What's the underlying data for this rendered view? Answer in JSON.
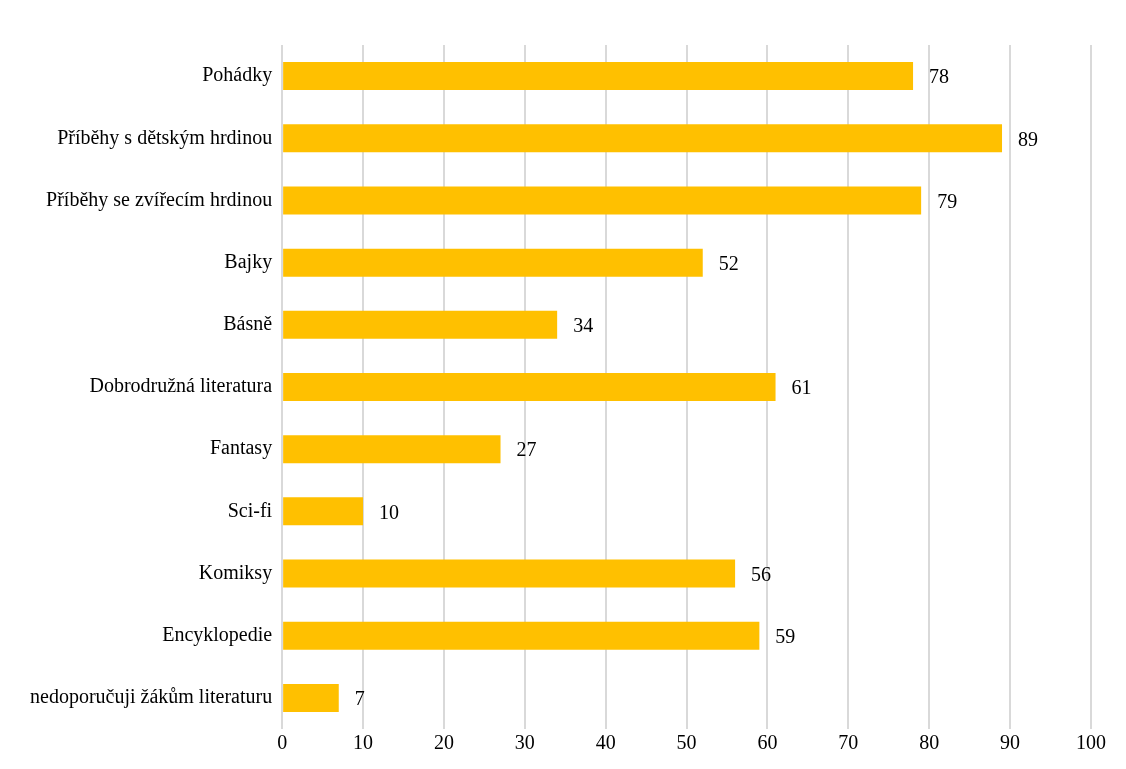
{
  "chart_data": {
    "type": "bar",
    "orientation": "horizontal",
    "categories": [
      "Pohádky",
      "Příběhy s dětským hrdinou",
      "Příběhy se zvířecím hrdinou",
      "Bajky",
      "Básně",
      "Dobrodružná literatura",
      "Fantasy",
      "Sci-fi",
      "Komiksy",
      "Encyklopedie",
      "nedoporučuji žákům literaturu"
    ],
    "values": [
      78,
      89,
      79,
      52,
      34,
      61,
      27,
      10,
      56,
      59,
      7
    ],
    "color": "#ffc000",
    "xlim": [
      0,
      100
    ],
    "xticks": [
      0,
      10,
      20,
      30,
      40,
      50,
      60,
      70,
      80,
      90,
      100
    ],
    "grid": "x",
    "data_labels": true,
    "legend": false
  }
}
